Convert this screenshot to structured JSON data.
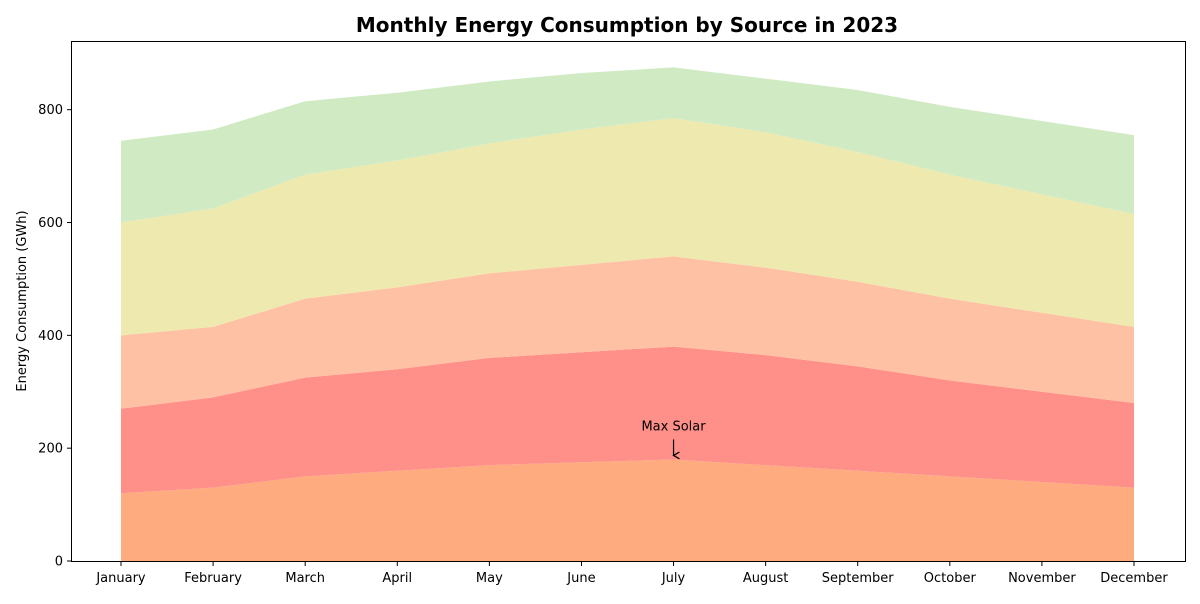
{
  "chart_data": {
    "type": "area",
    "stacked": true,
    "title": "Monthly Energy Consumption by Source in 2023",
    "xlabel": "",
    "ylabel": "Energy Consumption (GWh)",
    "categories": [
      "January",
      "February",
      "March",
      "April",
      "May",
      "June",
      "July",
      "August",
      "September",
      "October",
      "November",
      "December"
    ],
    "ylim": [
      0,
      920
    ],
    "yticks": [
      0,
      200,
      400,
      600,
      800
    ],
    "grid": false,
    "series": [
      {
        "color": "#ffab80",
        "values": [
          120,
          130,
          150,
          160,
          170,
          175,
          180,
          170,
          160,
          150,
          140,
          130
        ]
      },
      {
        "color": "#ff8f89",
        "values": [
          150,
          160,
          175,
          180,
          190,
          195,
          200,
          195,
          185,
          170,
          160,
          150
        ]
      },
      {
        "color": "#fec1a4",
        "values": [
          130,
          125,
          140,
          145,
          150,
          155,
          160,
          155,
          150,
          145,
          140,
          135
        ]
      },
      {
        "color": "#eee9ae",
        "values": [
          200,
          210,
          220,
          225,
          230,
          240,
          245,
          240,
          230,
          220,
          210,
          200
        ]
      },
      {
        "color": "#d0ebc3",
        "values": [
          145,
          140,
          130,
          120,
          110,
          100,
          90,
          95,
          110,
          120,
          130,
          140
        ]
      }
    ],
    "annotations": [
      {
        "text": "Max Solar",
        "category": "July",
        "y": 180
      }
    ]
  }
}
